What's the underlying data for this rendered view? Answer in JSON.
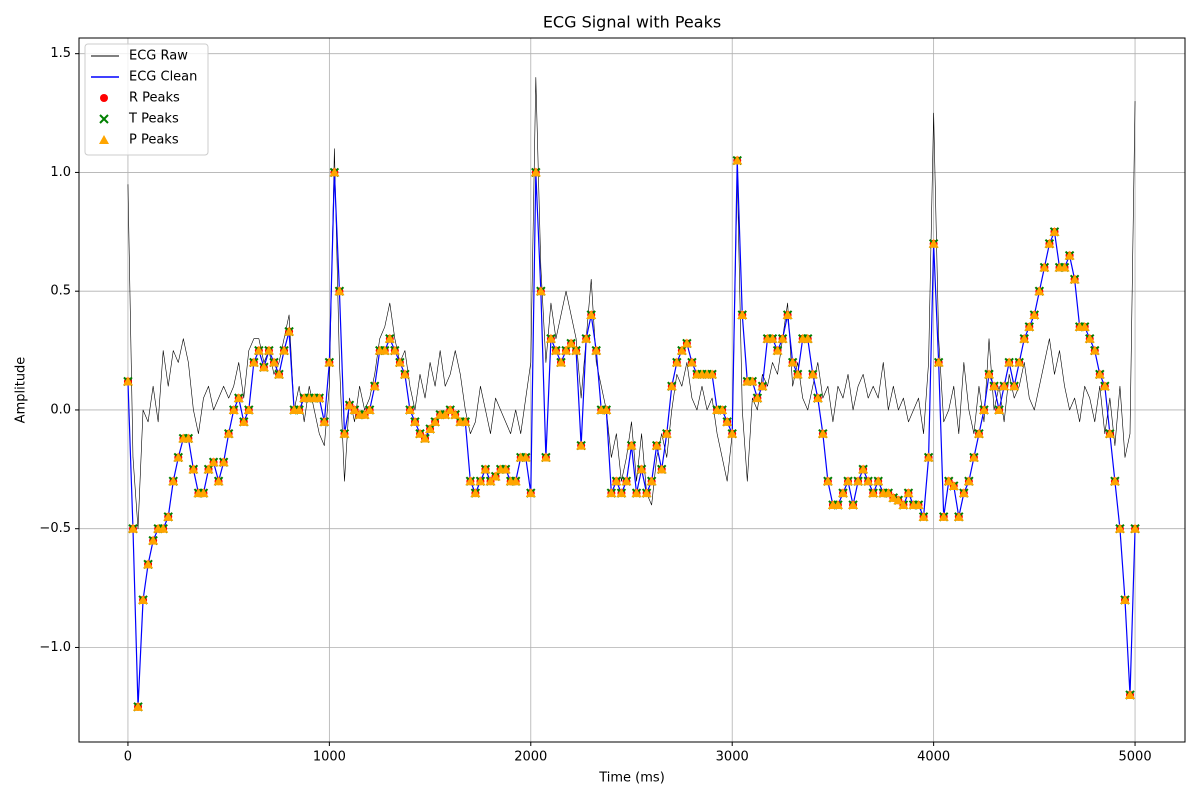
{
  "chart_data": {
    "type": "line",
    "title": "ECG Signal with Peaks",
    "x_label": "Time (ms)",
    "y_label": "Amplitude",
    "xlim": [
      -243,
      5248
    ],
    "ylim": [
      -1.398,
      1.566
    ],
    "xticks": [
      0,
      1000,
      2000,
      3000,
      4000,
      5000
    ],
    "yticks": [
      {
        "value": -1.0,
        "label": "−1.0"
      },
      {
        "value": -0.5,
        "label": "−0.5"
      },
      {
        "value": 0.0,
        "label": "0.0"
      },
      {
        "value": 0.5,
        "label": "0.5"
      },
      {
        "value": 1.0,
        "label": "1.0"
      },
      {
        "value": 1.5,
        "label": "1.5"
      }
    ],
    "grid": true,
    "legend": "upper left",
    "x": [
      0,
      25,
      50,
      75,
      100,
      125,
      150,
      175,
      200,
      225,
      250,
      275,
      300,
      325,
      350,
      375,
      400,
      425,
      450,
      475,
      500,
      525,
      550,
      575,
      600,
      625,
      650,
      675,
      700,
      725,
      750,
      775,
      800,
      825,
      850,
      875,
      900,
      925,
      950,
      975,
      1000,
      1025,
      1050,
      1075,
      1100,
      1125,
      1150,
      1175,
      1200,
      1225,
      1250,
      1275,
      1300,
      1325,
      1350,
      1375,
      1400,
      1425,
      1450,
      1475,
      1500,
      1525,
      1550,
      1575,
      1600,
      1625,
      1650,
      1675,
      1700,
      1725,
      1750,
      1775,
      1800,
      1825,
      1850,
      1875,
      1900,
      1925,
      1950,
      1975,
      2000,
      2025,
      2050,
      2075,
      2100,
      2125,
      2150,
      2175,
      2200,
      2225,
      2250,
      2275,
      2300,
      2325,
      2350,
      2375,
      2400,
      2425,
      2450,
      2475,
      2500,
      2525,
      2550,
      2575,
      2600,
      2625,
      2650,
      2675,
      2700,
      2725,
      2750,
      2775,
      2800,
      2825,
      2850,
      2875,
      2900,
      2925,
      2950,
      2975,
      3000,
      3025,
      3050,
      3075,
      3100,
      3125,
      3150,
      3175,
      3200,
      3225,
      3250,
      3275,
      3300,
      3325,
      3350,
      3375,
      3400,
      3425,
      3450,
      3475,
      3500,
      3525,
      3550,
      3575,
      3600,
      3625,
      3650,
      3675,
      3700,
      3725,
      3750,
      3775,
      3800,
      3825,
      3850,
      3875,
      3900,
      3925,
      3950,
      3975,
      4000,
      4025,
      4050,
      4075,
      4100,
      4125,
      4150,
      4175,
      4200,
      4225,
      4250,
      4275,
      4300,
      4325,
      4350,
      4375,
      4400,
      4425,
      4450,
      4475,
      4500,
      4525,
      4550,
      4575,
      4600,
      4625,
      4650,
      4675,
      4700,
      4725,
      4750,
      4775,
      4800,
      4825,
      4850,
      4875,
      4900,
      4925,
      4950,
      4975,
      5000
    ],
    "series": [
      {
        "name": "ECG Raw",
        "color": "#000000",
        "linewidth": 0.6,
        "values": [
          0.95,
          -0.2,
          -0.5,
          0.0,
          -0.05,
          0.1,
          -0.05,
          0.25,
          0.1,
          0.25,
          0.2,
          0.3,
          0.2,
          0.0,
          -0.1,
          0.05,
          0.1,
          0.0,
          0.05,
          0.1,
          0.05,
          0.1,
          0.2,
          0.05,
          0.25,
          0.3,
          0.3,
          0.2,
          0.25,
          0.15,
          0.2,
          0.3,
          0.4,
          0.0,
          0.1,
          -0.05,
          0.1,
          0.0,
          -0.1,
          -0.15,
          0.1,
          1.1,
          0.2,
          -0.3,
          0.05,
          -0.05,
          0.1,
          0.0,
          0.05,
          0.15,
          0.3,
          0.35,
          0.45,
          0.3,
          0.2,
          0.25,
          0.1,
          0.0,
          0.15,
          0.05,
          0.2,
          0.1,
          0.25,
          0.1,
          0.15,
          0.25,
          0.15,
          0.0,
          -0.1,
          -0.05,
          0.1,
          0.0,
          -0.1,
          0.05,
          0.0,
          -0.05,
          -0.1,
          0.0,
          -0.1,
          0.05,
          0.2,
          1.4,
          0.6,
          0.2,
          0.45,
          0.3,
          0.4,
          0.5,
          0.4,
          0.3,
          0.05,
          0.3,
          0.55,
          0.2,
          0.1,
          0.0,
          -0.2,
          -0.1,
          -0.3,
          -0.2,
          -0.05,
          -0.3,
          -0.1,
          -0.35,
          -0.4,
          -0.2,
          -0.1,
          -0.2,
          0.0,
          0.15,
          0.1,
          0.2,
          0.05,
          0.0,
          0.1,
          0.0,
          0.05,
          -0.1,
          -0.2,
          -0.3,
          -0.1,
          1.0,
          0.0,
          -0.3,
          0.05,
          0.0,
          0.15,
          0.1,
          0.2,
          0.15,
          0.3,
          0.45,
          0.1,
          0.2,
          0.05,
          0.0,
          0.1,
          0.2,
          0.05,
          0.1,
          -0.05,
          0.1,
          0.05,
          0.15,
          0.0,
          0.1,
          0.15,
          0.05,
          0.1,
          0.05,
          0.2,
          0.0,
          0.1,
          0.0,
          0.05,
          -0.05,
          0.0,
          0.05,
          -0.1,
          0.2,
          1.25,
          0.3,
          -0.05,
          0.0,
          0.1,
          -0.1,
          0.2,
          0.0,
          -0.1,
          0.1,
          -0.05,
          0.3,
          0.0,
          0.1,
          -0.05,
          0.15,
          0.05,
          0.1,
          0.2,
          0.05,
          0.0,
          0.1,
          0.2,
          0.3,
          0.15,
          0.25,
          0.1,
          0.0,
          0.05,
          -0.05,
          0.1,
          0.05,
          -0.05,
          0.1,
          -0.1,
          0.05,
          -0.15,
          0.1,
          -0.2,
          -0.1,
          1.3
        ]
      },
      {
        "name": "ECG Clean",
        "color": "#0000ff",
        "linewidth": 1.2,
        "values": [
          0.12,
          -0.5,
          -1.25,
          -0.8,
          -0.65,
          -0.55,
          -0.5,
          -0.5,
          -0.45,
          -0.3,
          -0.2,
          -0.12,
          -0.12,
          -0.25,
          -0.35,
          -0.35,
          -0.25,
          -0.22,
          -0.3,
          -0.22,
          -0.1,
          0.0,
          0.05,
          -0.05,
          0.0,
          0.2,
          0.25,
          0.18,
          0.25,
          0.2,
          0.15,
          0.25,
          0.33,
          0.0,
          0.0,
          0.05,
          0.05,
          0.05,
          0.05,
          -0.05,
          0.2,
          1.0,
          0.5,
          -0.1,
          0.02,
          0.0,
          -0.02,
          -0.02,
          0.0,
          0.1,
          0.25,
          0.25,
          0.3,
          0.25,
          0.2,
          0.15,
          0.0,
          -0.05,
          -0.1,
          -0.12,
          -0.08,
          -0.05,
          -0.02,
          -0.02,
          0.0,
          -0.02,
          -0.05,
          -0.05,
          -0.3,
          -0.35,
          -0.3,
          -0.25,
          -0.3,
          -0.28,
          -0.25,
          -0.25,
          -0.3,
          -0.3,
          -0.2,
          -0.2,
          -0.35,
          1.0,
          0.5,
          -0.2,
          0.3,
          0.25,
          0.2,
          0.25,
          0.28,
          0.25,
          -0.15,
          0.3,
          0.4,
          0.25,
          0.0,
          0.0,
          -0.35,
          -0.3,
          -0.35,
          -0.3,
          -0.15,
          -0.35,
          -0.25,
          -0.35,
          -0.3,
          -0.15,
          -0.25,
          -0.1,
          0.1,
          0.2,
          0.25,
          0.28,
          0.2,
          0.15,
          0.15,
          0.15,
          0.15,
          0.0,
          0.0,
          -0.05,
          -0.1,
          1.05,
          0.4,
          0.12,
          0.12,
          0.05,
          0.1,
          0.3,
          0.3,
          0.25,
          0.3,
          0.4,
          0.2,
          0.15,
          0.3,
          0.3,
          0.15,
          0.05,
          -0.1,
          -0.3,
          -0.4,
          -0.4,
          -0.35,
          -0.3,
          -0.4,
          -0.3,
          -0.25,
          -0.3,
          -0.35,
          -0.3,
          -0.35,
          -0.35,
          -0.37,
          -0.38,
          -0.4,
          -0.35,
          -0.4,
          -0.4,
          -0.45,
          -0.2,
          0.7,
          0.2,
          -0.45,
          -0.3,
          -0.32,
          -0.45,
          -0.35,
          -0.3,
          -0.2,
          -0.1,
          0.0,
          0.15,
          0.1,
          0.0,
          0.1,
          0.2,
          0.1,
          0.2,
          0.3,
          0.35,
          0.4,
          0.5,
          0.6,
          0.7,
          0.75,
          0.6,
          0.6,
          0.65,
          0.55,
          0.35,
          0.35,
          0.3,
          0.25,
          0.15,
          0.1,
          -0.1,
          -0.3,
          -0.5,
          -0.8,
          -1.2,
          -0.5
        ]
      },
      {
        "name": "R Peaks",
        "color": "#ff0000",
        "marker": "o",
        "values": [
          0.12,
          -0.5,
          -1.25,
          -0.8,
          -0.65,
          -0.55,
          -0.5,
          -0.5,
          -0.45,
          -0.3,
          -0.2,
          -0.12,
          -0.12,
          -0.25,
          -0.35,
          -0.35,
          -0.25,
          -0.22,
          -0.3,
          -0.22,
          -0.1,
          0.0,
          0.05,
          -0.05,
          0.0,
          0.2,
          0.25,
          0.18,
          0.25,
          0.2,
          0.15,
          0.25,
          0.33,
          0.0,
          0.0,
          0.05,
          0.05,
          0.05,
          0.05,
          -0.05,
          0.2,
          1.0,
          0.5,
          -0.1,
          0.02,
          0.0,
          -0.02,
          -0.02,
          0.0,
          0.1,
          0.25,
          0.25,
          0.3,
          0.25,
          0.2,
          0.15,
          0.0,
          -0.05,
          -0.1,
          -0.12,
          -0.08,
          -0.05,
          -0.02,
          -0.02,
          0.0,
          -0.02,
          -0.05,
          -0.05,
          -0.3,
          -0.35,
          -0.3,
          -0.25,
          -0.3,
          -0.28,
          -0.25,
          -0.25,
          -0.3,
          -0.3,
          -0.2,
          -0.2,
          -0.35,
          1.0,
          0.5,
          -0.2,
          0.3,
          0.25,
          0.2,
          0.25,
          0.28,
          0.25,
          -0.15,
          0.3,
          0.4,
          0.25,
          0.0,
          0.0,
          -0.35,
          -0.3,
          -0.35,
          -0.3,
          -0.15,
          -0.35,
          -0.25,
          -0.35,
          -0.3,
          -0.15,
          -0.25,
          -0.1,
          0.1,
          0.2,
          0.25,
          0.28,
          0.2,
          0.15,
          0.15,
          0.15,
          0.15,
          0.0,
          0.0,
          -0.05,
          -0.1,
          1.05,
          0.4,
          0.12,
          0.12,
          0.05,
          0.1,
          0.3,
          0.3,
          0.25,
          0.3,
          0.4,
          0.2,
          0.15,
          0.3,
          0.3,
          0.15,
          0.05,
          -0.1,
          -0.3,
          -0.4,
          -0.4,
          -0.35,
          -0.3,
          -0.4,
          -0.3,
          -0.25,
          -0.3,
          -0.35,
          -0.3,
          -0.35,
          -0.35,
          -0.37,
          -0.38,
          -0.4,
          -0.35,
          -0.4,
          -0.4,
          -0.45,
          -0.2,
          0.7,
          0.2,
          -0.45,
          -0.3,
          -0.32,
          -0.45,
          -0.35,
          -0.3,
          -0.2,
          -0.1,
          0.0,
          0.15,
          0.1,
          0.0,
          0.1,
          0.2,
          0.1,
          0.2,
          0.3,
          0.35,
          0.4,
          0.5,
          0.6,
          0.7,
          0.75,
          0.6,
          0.6,
          0.65,
          0.55,
          0.35,
          0.35,
          0.3,
          0.25,
          0.15,
          0.1,
          -0.1,
          -0.3,
          -0.5,
          -0.8,
          -1.2,
          -0.5
        ]
      },
      {
        "name": "T Peaks",
        "color": "#008000",
        "marker": "x",
        "values": [
          0.12,
          -0.5,
          -1.25,
          -0.8,
          -0.65,
          -0.55,
          -0.5,
          -0.5,
          -0.45,
          -0.3,
          -0.2,
          -0.12,
          -0.12,
          -0.25,
          -0.35,
          -0.35,
          -0.25,
          -0.22,
          -0.3,
          -0.22,
          -0.1,
          0.0,
          0.05,
          -0.05,
          0.0,
          0.2,
          0.25,
          0.18,
          0.25,
          0.2,
          0.15,
          0.25,
          0.33,
          0.0,
          0.0,
          0.05,
          0.05,
          0.05,
          0.05,
          -0.05,
          0.2,
          1.0,
          0.5,
          -0.1,
          0.02,
          0.0,
          -0.02,
          -0.02,
          0.0,
          0.1,
          0.25,
          0.25,
          0.3,
          0.25,
          0.2,
          0.15,
          0.0,
          -0.05,
          -0.1,
          -0.12,
          -0.08,
          -0.05,
          -0.02,
          -0.02,
          0.0,
          -0.02,
          -0.05,
          -0.05,
          -0.3,
          -0.35,
          -0.3,
          -0.25,
          -0.3,
          -0.28,
          -0.25,
          -0.25,
          -0.3,
          -0.3,
          -0.2,
          -0.2,
          -0.35,
          1.0,
          0.5,
          -0.2,
          0.3,
          0.25,
          0.2,
          0.25,
          0.28,
          0.25,
          -0.15,
          0.3,
          0.4,
          0.25,
          0.0,
          0.0,
          -0.35,
          -0.3,
          -0.35,
          -0.3,
          -0.15,
          -0.35,
          -0.25,
          -0.35,
          -0.3,
          -0.15,
          -0.25,
          -0.1,
          0.1,
          0.2,
          0.25,
          0.28,
          0.2,
          0.15,
          0.15,
          0.15,
          0.15,
          0.0,
          0.0,
          -0.05,
          -0.1,
          1.05,
          0.4,
          0.12,
          0.12,
          0.05,
          0.1,
          0.3,
          0.3,
          0.25,
          0.3,
          0.4,
          0.2,
          0.15,
          0.3,
          0.3,
          0.15,
          0.05,
          -0.1,
          -0.3,
          -0.4,
          -0.4,
          -0.35,
          -0.3,
          -0.4,
          -0.3,
          -0.25,
          -0.3,
          -0.35,
          -0.3,
          -0.35,
          -0.35,
          -0.37,
          -0.38,
          -0.4,
          -0.35,
          -0.4,
          -0.4,
          -0.45,
          -0.2,
          0.7,
          0.2,
          -0.45,
          -0.3,
          -0.32,
          -0.45,
          -0.35,
          -0.3,
          -0.2,
          -0.1,
          0.0,
          0.15,
          0.1,
          0.0,
          0.1,
          0.2,
          0.1,
          0.2,
          0.3,
          0.35,
          0.4,
          0.5,
          0.6,
          0.7,
          0.75,
          0.6,
          0.6,
          0.65,
          0.55,
          0.35,
          0.35,
          0.3,
          0.25,
          0.15,
          0.1,
          -0.1,
          -0.3,
          -0.5,
          -0.8,
          -1.2,
          -0.5
        ]
      },
      {
        "name": "P Peaks",
        "color": "#ffa500",
        "marker": "^",
        "values": [
          0.12,
          -0.5,
          -1.25,
          -0.8,
          -0.65,
          -0.55,
          -0.5,
          -0.5,
          -0.45,
          -0.3,
          -0.2,
          -0.12,
          -0.12,
          -0.25,
          -0.35,
          -0.35,
          -0.25,
          -0.22,
          -0.3,
          -0.22,
          -0.1,
          0.0,
          0.05,
          -0.05,
          0.0,
          0.2,
          0.25,
          0.18,
          0.25,
          0.2,
          0.15,
          0.25,
          0.33,
          0.0,
          0.0,
          0.05,
          0.05,
          0.05,
          0.05,
          -0.05,
          0.2,
          1.0,
          0.5,
          -0.1,
          0.02,
          0.0,
          -0.02,
          -0.02,
          0.0,
          0.1,
          0.25,
          0.25,
          0.3,
          0.25,
          0.2,
          0.15,
          0.0,
          -0.05,
          -0.1,
          -0.12,
          -0.08,
          -0.05,
          -0.02,
          -0.02,
          0.0,
          -0.02,
          -0.05,
          -0.05,
          -0.3,
          -0.35,
          -0.3,
          -0.25,
          -0.3,
          -0.28,
          -0.25,
          -0.25,
          -0.3,
          -0.3,
          -0.2,
          -0.2,
          -0.35,
          1.0,
          0.5,
          -0.2,
          0.3,
          0.25,
          0.2,
          0.25,
          0.28,
          0.25,
          -0.15,
          0.3,
          0.4,
          0.25,
          0.0,
          0.0,
          -0.35,
          -0.3,
          -0.35,
          -0.3,
          -0.15,
          -0.35,
          -0.25,
          -0.35,
          -0.3,
          -0.15,
          -0.25,
          -0.1,
          0.1,
          0.2,
          0.25,
          0.28,
          0.2,
          0.15,
          0.15,
          0.15,
          0.15,
          0.0,
          0.0,
          -0.05,
          -0.1,
          1.05,
          0.4,
          0.12,
          0.12,
          0.05,
          0.1,
          0.3,
          0.3,
          0.25,
          0.3,
          0.4,
          0.2,
          0.15,
          0.3,
          0.3,
          0.15,
          0.05,
          -0.1,
          -0.3,
          -0.4,
          -0.4,
          -0.35,
          -0.3,
          -0.4,
          -0.3,
          -0.25,
          -0.3,
          -0.35,
          -0.3,
          -0.35,
          -0.35,
          -0.37,
          -0.38,
          -0.4,
          -0.35,
          -0.4,
          -0.4,
          -0.45,
          -0.2,
          0.7,
          0.2,
          -0.45,
          -0.3,
          -0.32,
          -0.45,
          -0.35,
          -0.3,
          -0.2,
          -0.1,
          0.0,
          0.15,
          0.1,
          0.0,
          0.1,
          0.2,
          0.1,
          0.2,
          0.3,
          0.35,
          0.4,
          0.5,
          0.6,
          0.7,
          0.75,
          0.6,
          0.6,
          0.65,
          0.55,
          0.35,
          0.35,
          0.3,
          0.25,
          0.15,
          0.1,
          -0.1,
          -0.3,
          -0.5,
          -0.8,
          -1.2,
          -0.5
        ]
      }
    ]
  }
}
